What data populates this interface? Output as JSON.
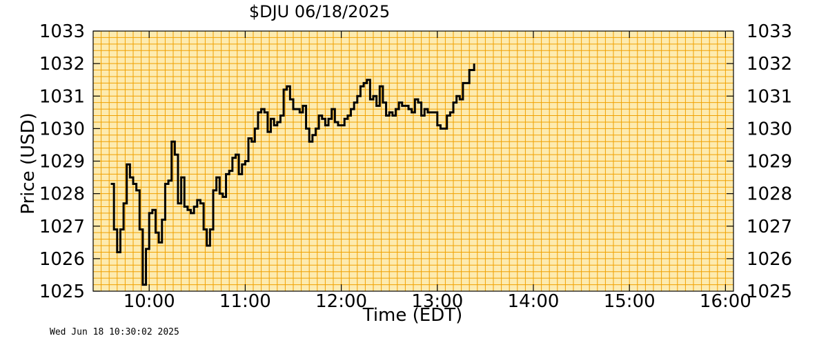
{
  "chart_data": {
    "type": "line",
    "title": "$DJU  06/18/2025",
    "xlabel": "Time (EDT)",
    "ylabel": "Price (USD)",
    "ylim": [
      1025,
      1033
    ],
    "xlim": [
      "09:25",
      "16:05"
    ],
    "grid": true,
    "line_style": "step",
    "colors": {
      "grid": "#f0a000",
      "plot_background": "#fdebb0",
      "line": "#000000"
    },
    "y_ticks": [
      "1025",
      "1026",
      "1027",
      "1028",
      "1029",
      "1030",
      "1031",
      "1032",
      "1033"
    ],
    "x_ticks": [
      "10:00",
      "11:00",
      "12:00",
      "13:00",
      "14:00",
      "15:00",
      "16:00"
    ],
    "series": [
      {
        "x": [
          "09:36",
          "09:38",
          "09:40",
          "09:42",
          "09:44",
          "09:46",
          "09:48",
          "09:50",
          "09:52",
          "09:54",
          "09:56",
          "09:58",
          "10:00",
          "10:02",
          "10:04",
          "10:06",
          "10:08",
          "10:10",
          "10:12",
          "10:14",
          "10:16",
          "10:18",
          "10:20",
          "10:22",
          "10:24",
          "10:26",
          "10:28",
          "10:30",
          "10:32",
          "10:34",
          "10:36",
          "10:38",
          "10:40",
          "10:42",
          "10:44",
          "10:46",
          "10:48",
          "10:50",
          "10:52",
          "10:54",
          "10:56",
          "10:58",
          "11:00",
          "11:02",
          "11:04",
          "11:06",
          "11:08",
          "11:10",
          "11:12",
          "11:14",
          "11:16",
          "11:18",
          "11:20",
          "11:22",
          "11:24",
          "11:26",
          "11:28",
          "11:30",
          "11:32",
          "11:34",
          "11:36",
          "11:38",
          "11:40",
          "11:42",
          "11:44",
          "11:46",
          "11:48",
          "11:50",
          "11:52",
          "11:54",
          "11:56",
          "11:58",
          "12:00",
          "12:02",
          "12:04",
          "12:06",
          "12:08",
          "12:10",
          "12:12",
          "12:14",
          "12:16",
          "12:18",
          "12:20",
          "12:22",
          "12:24",
          "12:26",
          "12:28",
          "12:30",
          "12:32",
          "12:34",
          "12:36",
          "12:38",
          "12:40",
          "12:42",
          "12:44",
          "12:46",
          "12:48",
          "12:50",
          "12:52",
          "12:54",
          "12:56",
          "12:58",
          "13:00",
          "13:02",
          "13:04",
          "13:06",
          "13:08",
          "13:10",
          "13:12",
          "13:14",
          "13:16",
          "13:18",
          "13:20",
          "13:22"
        ],
        "values": [
          1028.3,
          1026.9,
          1026.2,
          1026.9,
          1027.7,
          1028.9,
          1028.5,
          1028.3,
          1028.1,
          1026.9,
          1025.2,
          1026.3,
          1027.4,
          1027.5,
          1026.8,
          1026.5,
          1027.2,
          1028.3,
          1028.4,
          1029.6,
          1029.2,
          1027.7,
          1028.5,
          1027.6,
          1027.5,
          1027.4,
          1027.6,
          1027.8,
          1027.7,
          1026.9,
          1026.4,
          1026.9,
          1028.1,
          1028.5,
          1028.0,
          1027.9,
          1028.6,
          1028.7,
          1029.1,
          1029.2,
          1028.6,
          1028.9,
          1029.0,
          1029.7,
          1029.6,
          1030.0,
          1030.5,
          1030.6,
          1030.5,
          1029.9,
          1030.3,
          1030.1,
          1030.2,
          1030.4,
          1031.2,
          1031.3,
          1030.9,
          1030.6,
          1030.6,
          1030.5,
          1030.7,
          1030.0,
          1029.6,
          1029.8,
          1030.0,
          1030.4,
          1030.3,
          1030.1,
          1030.3,
          1030.6,
          1030.2,
          1030.1,
          1030.1,
          1030.3,
          1030.4,
          1030.6,
          1030.8,
          1031.0,
          1031.3,
          1031.4,
          1031.5,
          1030.9,
          1031.0,
          1030.7,
          1031.3,
          1030.8,
          1030.4,
          1030.5,
          1030.4,
          1030.6,
          1030.8,
          1030.7,
          1030.7,
          1030.6,
          1030.5,
          1030.9,
          1030.8,
          1030.4,
          1030.6,
          1030.5,
          1030.5,
          1030.5,
          1030.1,
          1030.0,
          1030.0,
          1030.4,
          1030.5,
          1030.8,
          1031.0,
          1030.9,
          1031.4,
          1031.4,
          1031.8,
          1031.8
        ],
        "last_value": 1032.0
      }
    ]
  },
  "timestamp": "Wed Jun 18 10:30:02 2025"
}
